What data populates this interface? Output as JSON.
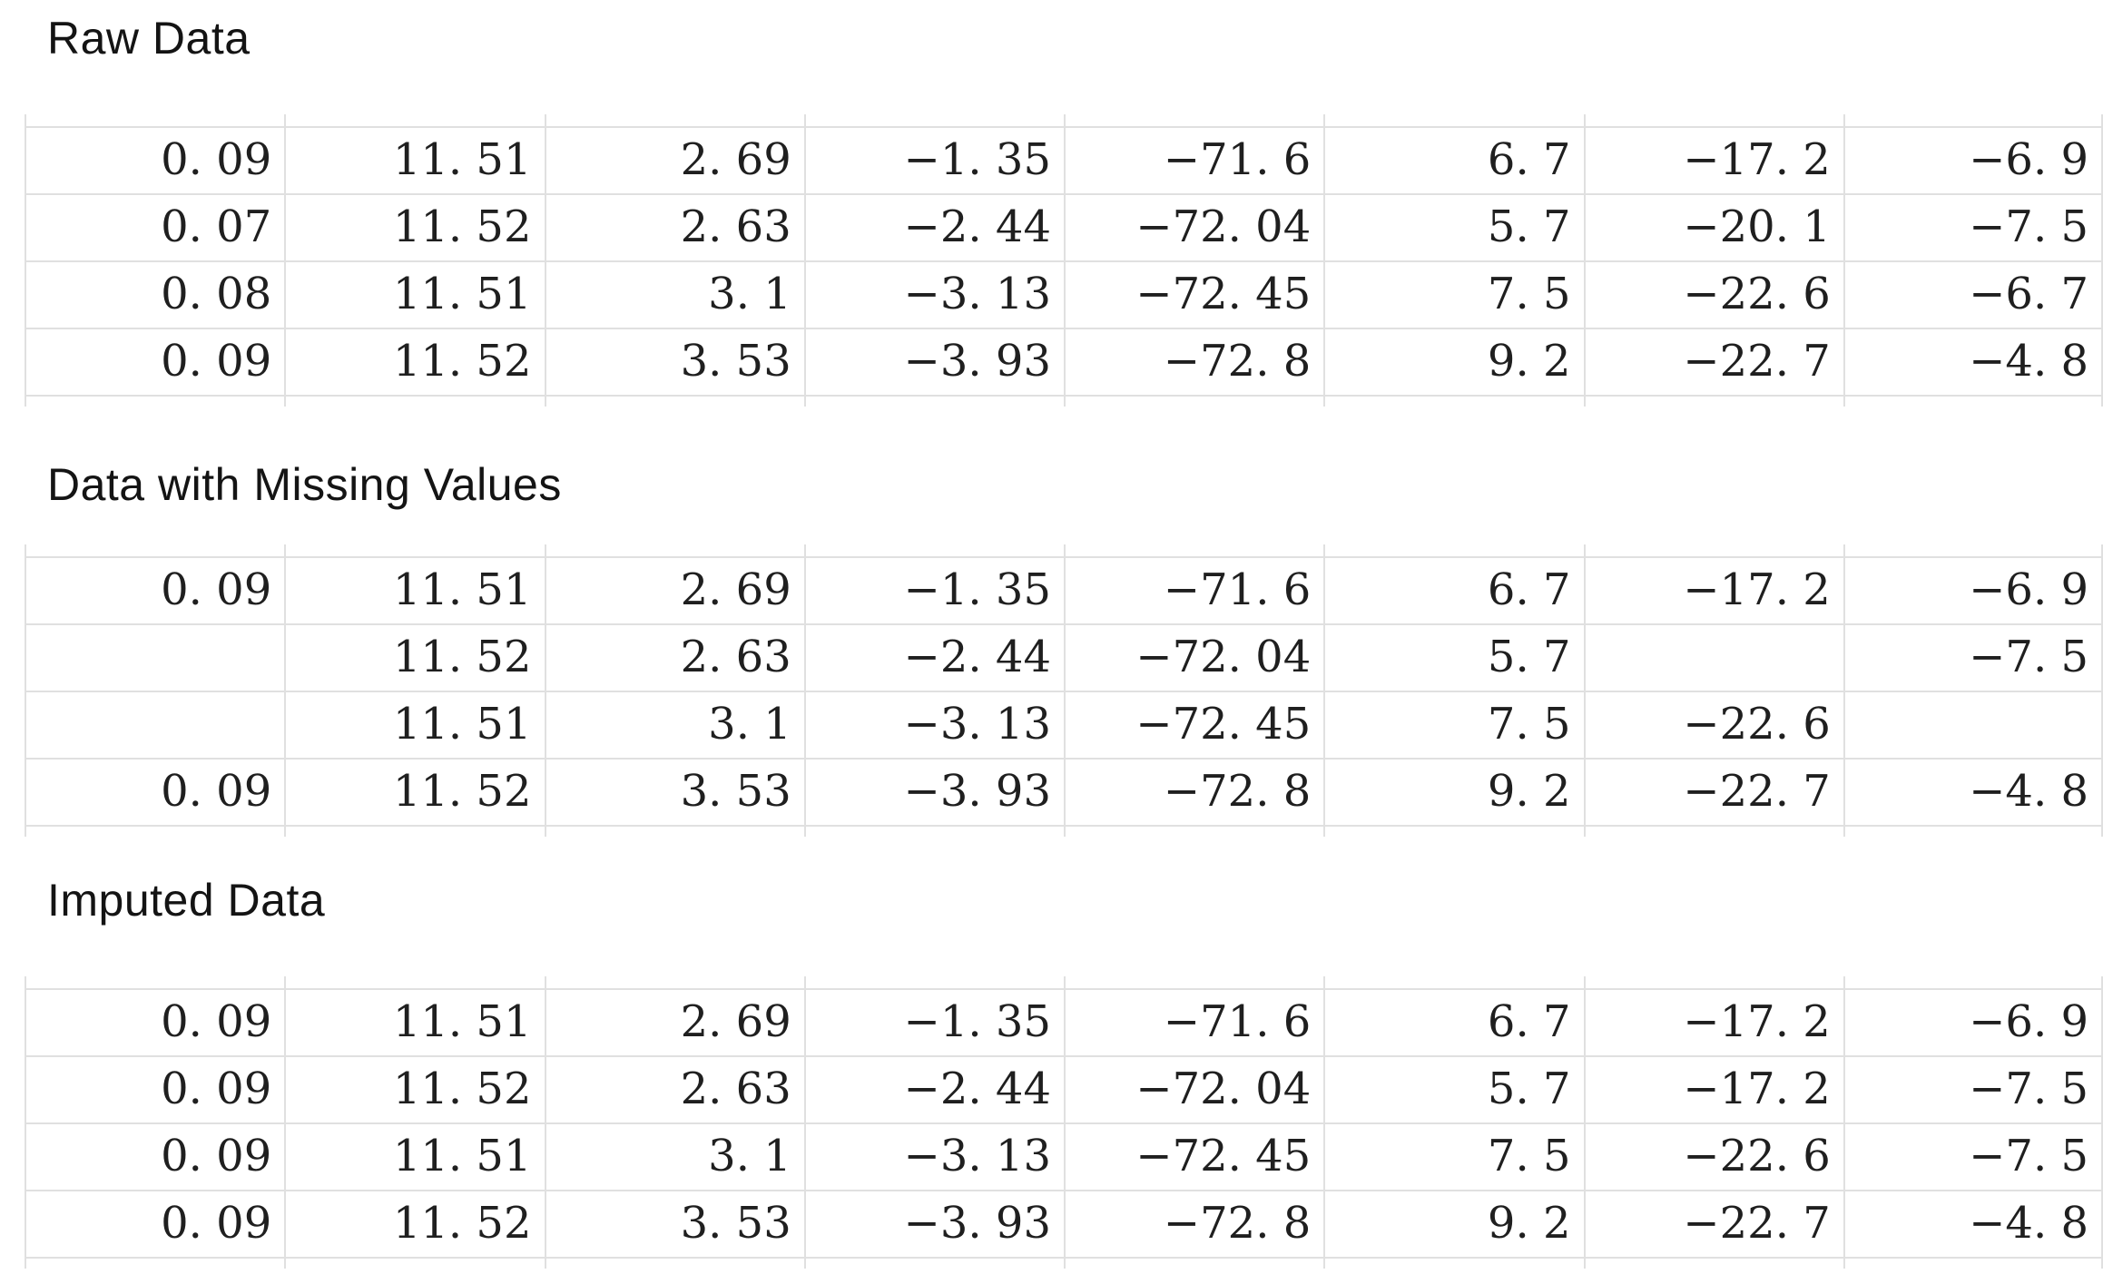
{
  "colors": {
    "background": "#ffffff",
    "grid_line": "#e0e0e0",
    "title_text": "#141414",
    "cell_text": "#1f1f1f"
  },
  "sections": [
    {
      "title": "Raw Data",
      "rows": [
        [
          "0. 09",
          "11. 51",
          "2. 69",
          "−1. 35",
          "−71. 6",
          "6. 7",
          "−17. 2",
          "−6. 9"
        ],
        [
          "0. 07",
          "11. 52",
          "2. 63",
          "−2. 44",
          "−72. 04",
          "5. 7",
          "−20. 1",
          "−7. 5"
        ],
        [
          "0. 08",
          "11. 51",
          "3. 1",
          "−3. 13",
          "−72. 45",
          "7. 5",
          "−22. 6",
          "−6. 7"
        ],
        [
          "0. 09",
          "11. 52",
          "3. 53",
          "−3. 93",
          "−72. 8",
          "9. 2",
          "−22. 7",
          "−4. 8"
        ]
      ]
    },
    {
      "title": "Data with Missing Values",
      "rows": [
        [
          "0. 09",
          "11. 51",
          "2. 69",
          "−1. 35",
          "−71. 6",
          "6. 7",
          "−17. 2",
          "−6. 9"
        ],
        [
          "",
          "11. 52",
          "2. 63",
          "−2. 44",
          "−72. 04",
          "5. 7",
          "",
          "−7. 5"
        ],
        [
          "",
          "11. 51",
          "3. 1",
          "−3. 13",
          "−72. 45",
          "7. 5",
          "−22. 6",
          ""
        ],
        [
          "0. 09",
          "11. 52",
          "3. 53",
          "−3. 93",
          "−72. 8",
          "9. 2",
          "−22. 7",
          "−4. 8"
        ]
      ]
    },
    {
      "title": "Imputed Data",
      "rows": [
        [
          "0. 09",
          "11. 51",
          "2. 69",
          "−1. 35",
          "−71. 6",
          "6. 7",
          "−17. 2",
          "−6. 9"
        ],
        [
          "0. 09",
          "11. 52",
          "2. 63",
          "−2. 44",
          "−72. 04",
          "5. 7",
          "−17. 2",
          "−7. 5"
        ],
        [
          "0. 09",
          "11. 51",
          "3. 1",
          "−3. 13",
          "−72. 45",
          "7. 5",
          "−22. 6",
          "−7. 5"
        ],
        [
          "0. 09",
          "11. 52",
          "3. 53",
          "−3. 93",
          "−72. 8",
          "9. 2",
          "−22. 7",
          "−4. 8"
        ]
      ]
    }
  ]
}
